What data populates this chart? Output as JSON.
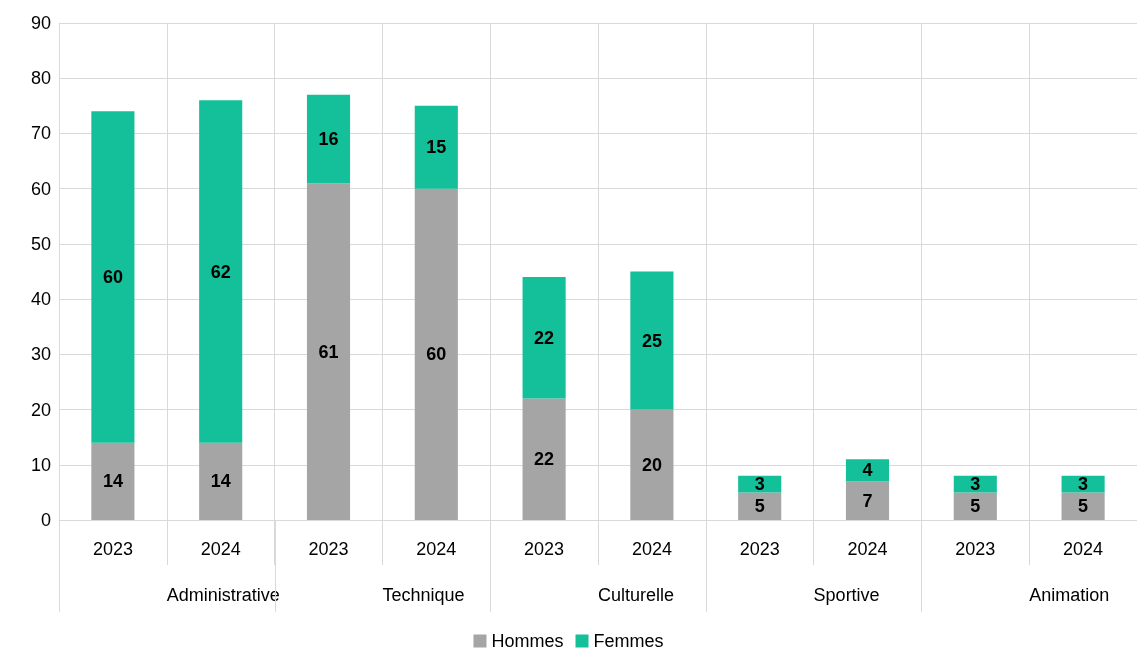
{
  "chart_data": {
    "type": "bar",
    "stacked": true,
    "categories": [
      "2023",
      "2024",
      "2023",
      "2024",
      "2023",
      "2024",
      "2023",
      "2024",
      "2023",
      "2024"
    ],
    "annotations": [
      "Administrative",
      "Technique",
      "Culturelle",
      "Sportive",
      "Animation"
    ],
    "series": [
      {
        "name": "Hommes",
        "color": "#a5a5a5",
        "values": [
          14,
          14,
          61,
          60,
          22,
          20,
          5,
          7,
          5,
          5
        ]
      },
      {
        "name": "Femmes",
        "color": "#14c09a",
        "values": [
          60,
          62,
          16,
          15,
          22,
          25,
          3,
          4,
          3,
          3
        ]
      }
    ],
    "ylim": [
      0,
      90
    ],
    "yticks": [
      0,
      10,
      20,
      30,
      40,
      50,
      60,
      70,
      80,
      90
    ],
    "grid": true,
    "legend": "bottom",
    "data_labels": true
  }
}
